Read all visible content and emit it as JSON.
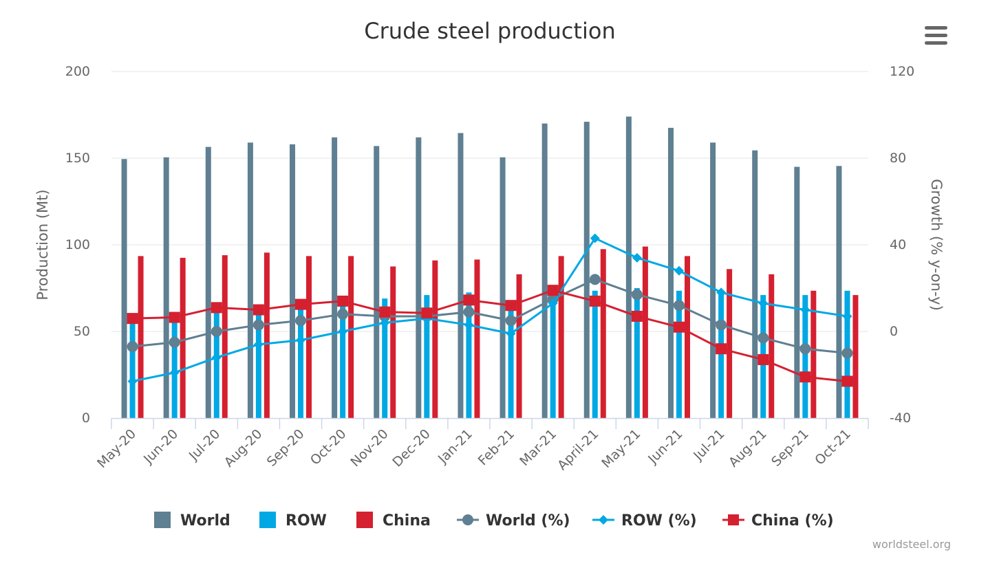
{
  "chart_data": {
    "type": "bar+line",
    "title": "Crude steel production",
    "categories": [
      "May-20",
      "Jun-20",
      "Jul-20",
      "Aug-20",
      "Sep-20",
      "Oct-20",
      "Nov-20",
      "Dec-20",
      "Jan-21",
      "Feb-21",
      "Mar-21",
      "April-21",
      "May-21",
      "Jun-21",
      "Jul-21",
      "Aug-21",
      "Sep-21",
      "Oct-21"
    ],
    "y_left": {
      "label": "Production (Mt)",
      "min": 0,
      "max": 200,
      "ticks": [
        "0",
        "50",
        "100",
        "150",
        "200"
      ]
    },
    "y_right": {
      "label": "Growth (% y-on-y)",
      "min": -40,
      "max": 120,
      "ticks": [
        "-40",
        "0",
        "40",
        "80",
        "120"
      ]
    },
    "grid": true,
    "legend_position": "bottom",
    "bar_series": [
      {
        "name": "World",
        "color": "#5f7f92",
        "values": [
          149.5,
          150.5,
          156.5,
          159,
          158,
          162,
          157,
          162,
          164.5,
          150.5,
          170,
          171,
          174,
          167.5,
          159,
          154.5,
          145,
          145.5
        ]
      },
      {
        "name": "ROW",
        "color": "#00a8e4",
        "values": [
          57,
          58,
          62.5,
          63.5,
          65,
          68.5,
          69,
          71,
          72.5,
          67.5,
          75,
          73.5,
          75,
          73.5,
          73,
          71,
          71,
          73.5
        ]
      },
      {
        "name": "China",
        "color": "#d52030",
        "values": [
          93.5,
          92.5,
          94,
          95.5,
          93.5,
          93.5,
          87.5,
          91,
          91.5,
          83,
          93.5,
          97.5,
          99,
          93.5,
          86,
          83,
          73.5,
          71
        ]
      }
    ],
    "line_series": [
      {
        "name": "World (%)",
        "color": "#5f7f92",
        "marker": "circle",
        "values": [
          -7,
          -5,
          0,
          3,
          5,
          8,
          7,
          7,
          9,
          5,
          15,
          24,
          17,
          12,
          3,
          -3,
          -8,
          -10
        ]
      },
      {
        "name": "ROW (%)",
        "color": "#00a8e4",
        "marker": "diamond",
        "values": [
          -23,
          -19,
          -12,
          -6,
          -4,
          0,
          4,
          6,
          3,
          -1,
          13,
          43,
          34,
          28,
          18,
          13,
          10,
          7
        ]
      },
      {
        "name": "China (%)",
        "color": "#d52030",
        "marker": "square",
        "values": [
          6,
          6.5,
          11,
          10,
          12.5,
          14,
          9,
          8.5,
          14.5,
          12,
          19,
          14,
          7,
          2,
          -8,
          -13,
          -21,
          -23
        ]
      }
    ]
  },
  "ui": {
    "menu_icon": "hamburger-menu-icon",
    "credit": "worldsteel.org"
  }
}
